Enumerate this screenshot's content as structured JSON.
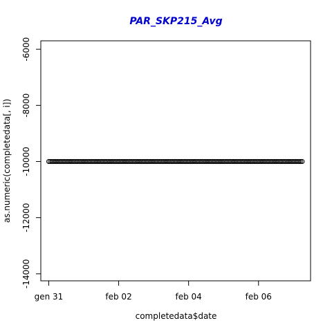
{
  "chart_data": {
    "type": "scatter",
    "title": "PAR_SKP215_Avg",
    "title_color": "#0000cc",
    "xlabel": "completedata$date",
    "ylabel": "as.numeric(completedata[, i])",
    "x_range": [
      "2023-01-30T18:34",
      "2023-02-07T11:43"
    ],
    "ylim": [
      -14250,
      -5700
    ],
    "x_ticks": [
      {
        "date": "2023-01-31",
        "label": "gen 31"
      },
      {
        "date": "2023-02-02",
        "label": "feb 02"
      },
      {
        "date": "2023-02-04",
        "label": "feb 04"
      },
      {
        "date": "2023-02-06",
        "label": "feb 06"
      }
    ],
    "y_ticks": [
      {
        "value": -6000,
        "label": "-6000"
      },
      {
        "value": -8000,
        "label": "-8000"
      },
      {
        "value": -10000,
        "label": "-10000"
      },
      {
        "value": -12000,
        "label": "-12000"
      },
      {
        "value": -14000,
        "label": "-14000"
      }
    ],
    "series": [
      {
        "x_start": "2023-01-31T00:00",
        "x_end": "2023-02-07T06:00",
        "x_step_hours": 1,
        "y_constant": -9999,
        "marker": "open-circle",
        "color": "#000000"
      }
    ],
    "grid": false,
    "legend": "none"
  }
}
